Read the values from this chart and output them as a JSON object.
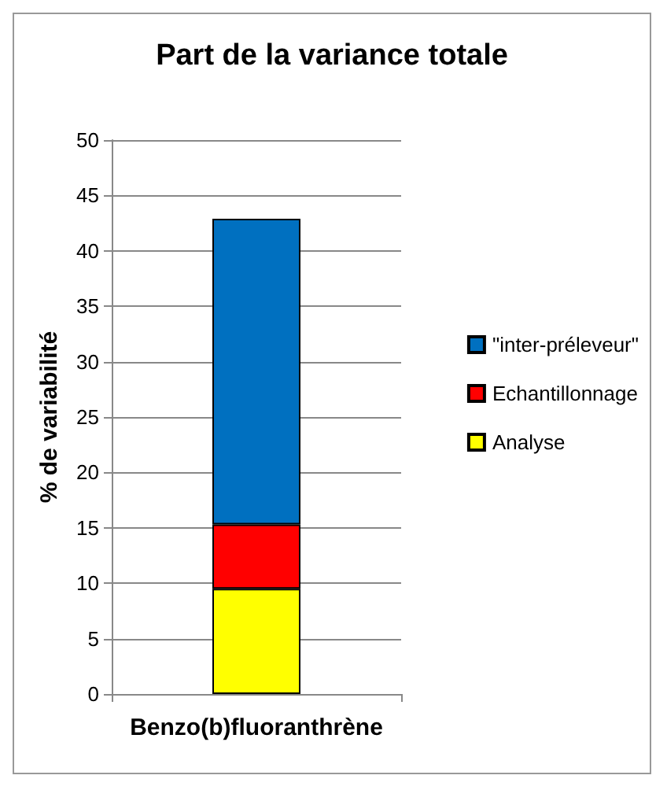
{
  "chart_data": {
    "type": "bar",
    "title": "Part de la variance totale",
    "ylabel": "% de variabilité",
    "categories": [
      "Benzo(b)fluoranthrène"
    ],
    "stacked": true,
    "series": [
      {
        "name": "Analyse",
        "color": "#ffff00",
        "values": [
          9.5
        ]
      },
      {
        "name": "Echantillonnage",
        "color": "#ff0000",
        "values": [
          5.8
        ]
      },
      {
        "name": "\"inter-préleveur\"",
        "color": "#0070c0",
        "values": [
          27.6
        ]
      }
    ],
    "ylim": [
      0,
      50
    ],
    "yticks": [
      0,
      5,
      10,
      15,
      20,
      25,
      30,
      35,
      40,
      45,
      50
    ],
    "grid": "y",
    "legend": "right"
  }
}
